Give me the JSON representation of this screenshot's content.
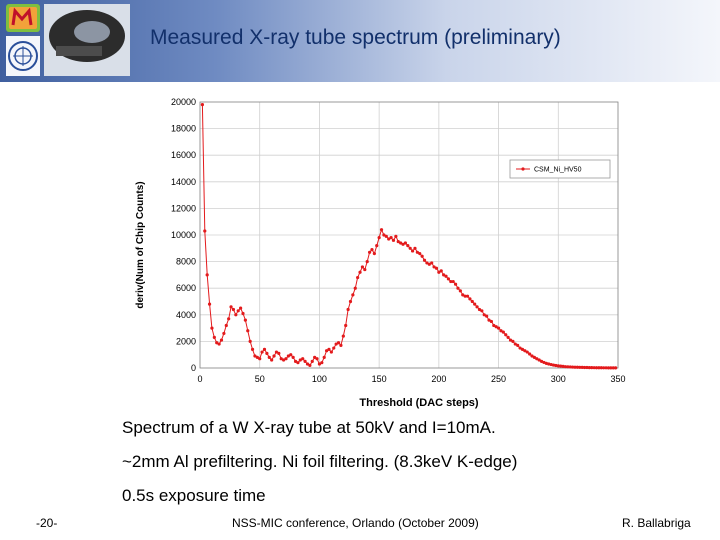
{
  "slide": {
    "title": "Measured X-ray tube spectrum (preliminary)",
    "captions": [
      "Spectrum of a W X-ray tube at 50kV and I=10mA.",
      "~2mm Al prefiltering. Ni foil filtering. (8.3keV K-edge)",
      "0.5s exposure time"
    ],
    "footer": {
      "page": "-20-",
      "conference": "NSS-MIC conference, Orlando (October 2009)",
      "author": "R. Ballabriga"
    }
  },
  "logos": {
    "top": "m-logo-icon",
    "middle": "detector-chip-icon",
    "bottom": "cern-logo-icon"
  },
  "colors": {
    "series": "#e31a1c",
    "title": "#12306b",
    "header_left": "#3f5f9f"
  },
  "chart_data": {
    "type": "line",
    "xlabel": "Threshold (DAC steps)",
    "ylabel": "deriv(Num of Chip Counts)",
    "xlim": [
      0,
      350
    ],
    "ylim": [
      0,
      20000
    ],
    "xticks": [
      0,
      50,
      100,
      150,
      200,
      250,
      300,
      350
    ],
    "yticks": [
      0,
      2000,
      4000,
      6000,
      8000,
      10000,
      12000,
      14000,
      16000,
      18000,
      20000
    ],
    "grid": true,
    "legend_position": "top-right",
    "series": [
      {
        "name": "CSM_Ni_HV50",
        "x": [
          2,
          4,
          6,
          8,
          10,
          12,
          14,
          16,
          18,
          20,
          22,
          24,
          26,
          28,
          30,
          32,
          34,
          36,
          38,
          40,
          42,
          44,
          46,
          48,
          50,
          52,
          54,
          56,
          58,
          60,
          62,
          64,
          66,
          68,
          70,
          72,
          74,
          76,
          78,
          80,
          82,
          84,
          86,
          88,
          90,
          92,
          94,
          96,
          98,
          100,
          102,
          104,
          106,
          108,
          110,
          112,
          114,
          116,
          118,
          120,
          122,
          124,
          126,
          128,
          130,
          132,
          134,
          136,
          138,
          140,
          142,
          144,
          146,
          148,
          150,
          152,
          154,
          156,
          158,
          160,
          162,
          164,
          166,
          168,
          170,
          172,
          174,
          176,
          178,
          180,
          182,
          184,
          186,
          188,
          190,
          192,
          194,
          196,
          198,
          200,
          202,
          204,
          206,
          208,
          210,
          212,
          214,
          216,
          218,
          220,
          222,
          224,
          226,
          228,
          230,
          232,
          234,
          236,
          238,
          240,
          242,
          244,
          246,
          248,
          250,
          252,
          254,
          256,
          258,
          260,
          262,
          264,
          266,
          268,
          270,
          272,
          274,
          276,
          278,
          280,
          282,
          284,
          286,
          288,
          290,
          292,
          294,
          296,
          298,
          300,
          302,
          304,
          306,
          308,
          310,
          312,
          314,
          316,
          318,
          320,
          322,
          324,
          326,
          328,
          330,
          332,
          334,
          336,
          338,
          340,
          342,
          344,
          346,
          348
        ],
        "y": [
          19800,
          10300,
          7000,
          4800,
          3000,
          2300,
          1900,
          1800,
          2100,
          2600,
          3200,
          3700,
          4600,
          4400,
          4000,
          4300,
          4500,
          4100,
          3600,
          2800,
          2000,
          1400,
          900,
          800,
          700,
          1200,
          1400,
          1100,
          800,
          600,
          900,
          1200,
          1100,
          700,
          600,
          700,
          900,
          1000,
          800,
          500,
          400,
          600,
          700,
          500,
          300,
          200,
          500,
          800,
          700,
          300,
          400,
          800,
          1300,
          1400,
          1200,
          1500,
          1800,
          1900,
          1700,
          2400,
          3200,
          4400,
          5000,
          5500,
          6000,
          6800,
          7200,
          7600,
          7400,
          8000,
          8700,
          8900,
          8600,
          9200,
          9800,
          10400,
          10000,
          9900,
          9700,
          9800,
          9600,
          9900,
          9500,
          9400,
          9300,
          9400,
          9200,
          9000,
          8800,
          9000,
          8700,
          8600,
          8400,
          8100,
          7900,
          7800,
          7900,
          7600,
          7500,
          7200,
          7300,
          7000,
          6900,
          6700,
          6500,
          6500,
          6300,
          6000,
          5800,
          5500,
          5400,
          5400,
          5200,
          5000,
          4800,
          4600,
          4400,
          4300,
          4000,
          3900,
          3600,
          3500,
          3200,
          3100,
          3000,
          2800,
          2700,
          2500,
          2300,
          2100,
          2000,
          1800,
          1700,
          1500,
          1400,
          1300,
          1200,
          1050,
          900,
          800,
          700,
          600,
          500,
          420,
          350,
          300,
          260,
          220,
          190,
          160,
          140,
          120,
          100,
          90,
          80,
          70,
          60,
          55,
          50,
          45,
          40,
          35,
          30,
          30,
          25,
          20,
          20,
          20,
          15,
          15,
          10,
          10,
          10,
          10
        ]
      }
    ]
  }
}
